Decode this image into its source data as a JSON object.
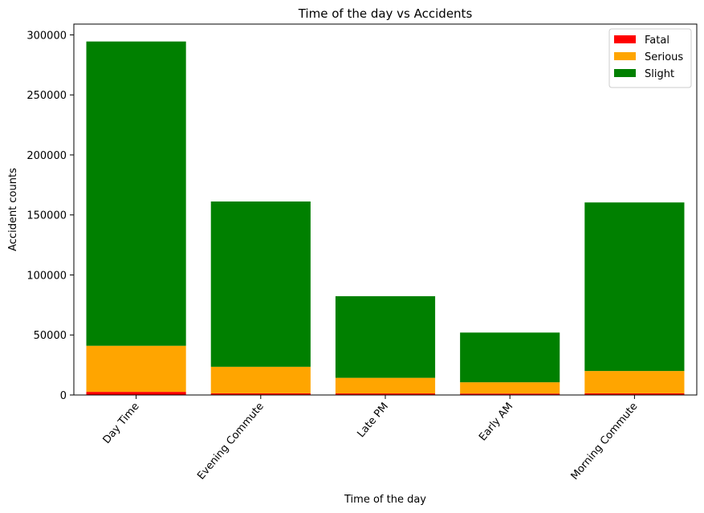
{
  "chart_data": {
    "type": "bar",
    "stacked": true,
    "title": "Time of the day vs Accidents",
    "xlabel": "Time of the day",
    "ylabel": "Accident counts",
    "categories": [
      "Day Time",
      "Evening Commute",
      "Late PM",
      "Early AM",
      "Morning Commute"
    ],
    "series": [
      {
        "name": "Fatal",
        "color": "#ff0000",
        "values": [
          2600,
          1400,
          1300,
          1200,
          1400
        ]
      },
      {
        "name": "Serious",
        "color": "#ffa500",
        "values": [
          38400,
          22100,
          13000,
          9400,
          18600
        ]
      },
      {
        "name": "Slight",
        "color": "#008000",
        "values": [
          253500,
          137700,
          68000,
          41400,
          140400
        ]
      }
    ],
    "ylim": [
      0,
      309000
    ],
    "yticks": [
      0,
      50000,
      100000,
      150000,
      200000,
      250000,
      300000
    ],
    "grid": false,
    "legend_position": "top-right"
  }
}
